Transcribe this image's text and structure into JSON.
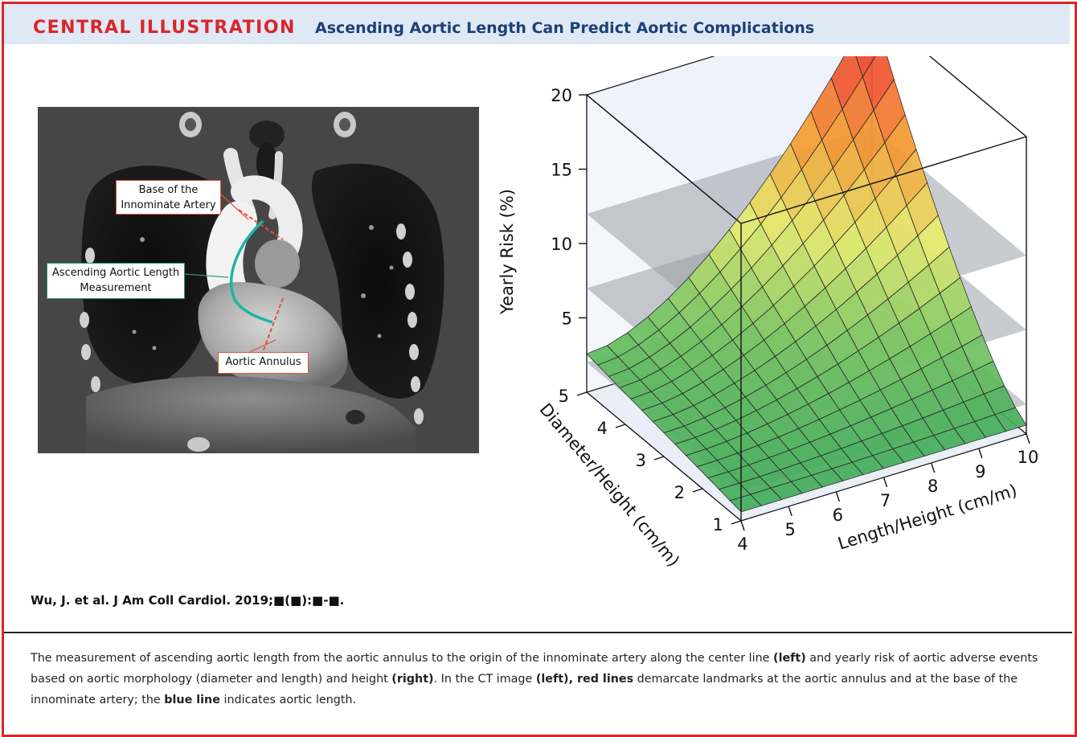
{
  "header": {
    "tag": "CENTRAL ILLUSTRATION",
    "title": "Ascending Aortic Length Can Predict Aortic Complications"
  },
  "ct_image": {
    "labels": {
      "innominate": "Base of the\nInnominate Artery",
      "length": "Ascending Aortic Length\nMeasurement",
      "annulus": "Aortic Annulus"
    },
    "colors": {
      "red_line": "#e4503a",
      "blue_line": "#1fb3a8",
      "innominate_border": "#e4503a",
      "length_border": "#1f9c7a",
      "annulus_border": "#e4503a"
    }
  },
  "chart_data": {
    "type": "surface",
    "zlabel": "Yearly Risk (%)",
    "ylabel": "Diameter/Height (cm/m)",
    "xlabel": "Length/Height (cm/m)",
    "z_ticks": [
      5,
      10,
      15,
      20
    ],
    "y_ticks": [
      1,
      2,
      3,
      4,
      5
    ],
    "x_ticks": [
      4,
      5,
      6,
      7,
      8,
      9,
      10
    ],
    "zlim": [
      0,
      20
    ],
    "ylim": [
      1,
      5
    ],
    "xlim": [
      4,
      10
    ],
    "threshold_planes": [
      2,
      7,
      12
    ],
    "colorscale": [
      "#3aa85a",
      "#7cc862",
      "#e8ee6e",
      "#f5a031",
      "#ef4a2f"
    ]
  },
  "citation": "Wu, J. et al. J Am Coll Cardiol. 2019;■(■):■-■.",
  "caption": {
    "p1": "The measurement of ascending aortic length from the aortic annulus to the origin of the innominate artery along the center line ",
    "b1": "(left)",
    "p2": " and yearly risk of aortic adverse events based on aortic morphology (diameter and length) and height ",
    "b2": "(right)",
    "p3": ". In the CT image ",
    "b3": "(left), red lines",
    "p4": " demarcate landmarks at the aortic annulus and at the base of the innominate artery; the ",
    "b4": "blue line",
    "p5": " indicates aortic length."
  }
}
